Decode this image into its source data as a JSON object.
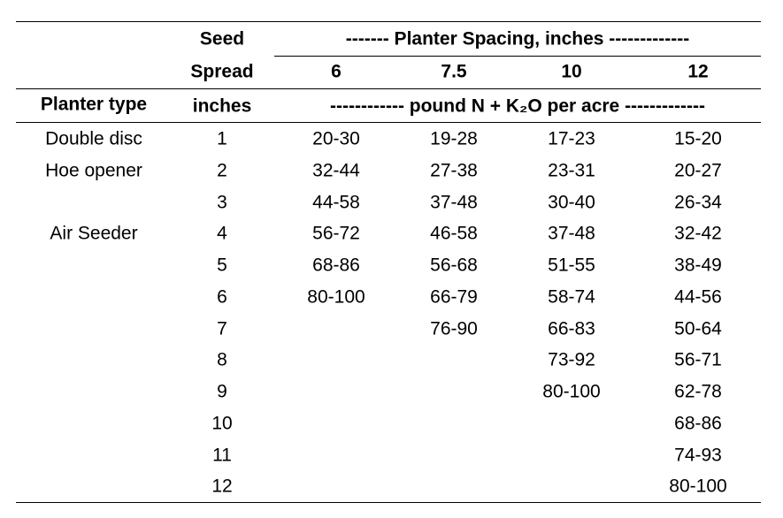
{
  "table": {
    "header": {
      "seed": "Seed",
      "spread": "Spread",
      "inches": "inches",
      "planter_type": "Planter type",
      "spacing_title": "------- Planter Spacing, inches -------------",
      "spacings": [
        "6",
        "7.5",
        "10",
        "12"
      ],
      "unit_title": "------------ pound N + K₂O per acre -------------"
    },
    "rows": [
      {
        "planter_type": "Double disc",
        "spread": "1",
        "values": [
          "20-30",
          "19-28",
          "17-23",
          "15-20"
        ]
      },
      {
        "planter_type": "Hoe opener",
        "spread": "2",
        "values": [
          "32-44",
          "27-38",
          "23-31",
          "20-27"
        ]
      },
      {
        "spread": "3",
        "values": [
          "44-58",
          "37-48",
          "30-40",
          "26-34"
        ]
      },
      {
        "planter_type": "Air Seeder",
        "spread": "4",
        "values": [
          "56-72",
          "46-58",
          "37-48",
          "32-42"
        ]
      },
      {
        "spread": "5",
        "values": [
          "68-86",
          "56-68",
          "51-55",
          "38-49"
        ]
      },
      {
        "spread": "6",
        "values": [
          "80-100",
          "66-79",
          "58-74",
          "44-56"
        ]
      },
      {
        "spread": "7",
        "values": [
          null,
          "76-90",
          "66-83",
          "50-64"
        ]
      },
      {
        "spread": "8",
        "values": [
          null,
          null,
          "73-92",
          "56-71"
        ]
      },
      {
        "spread": "9",
        "values": [
          null,
          null,
          "80-100",
          "62-78"
        ]
      },
      {
        "spread": "10",
        "values": [
          null,
          null,
          null,
          "68-86"
        ]
      },
      {
        "spread": "11",
        "values": [
          null,
          null,
          null,
          "74-93"
        ]
      },
      {
        "spread": "12",
        "values": [
          null,
          null,
          null,
          "80-100"
        ]
      }
    ]
  }
}
